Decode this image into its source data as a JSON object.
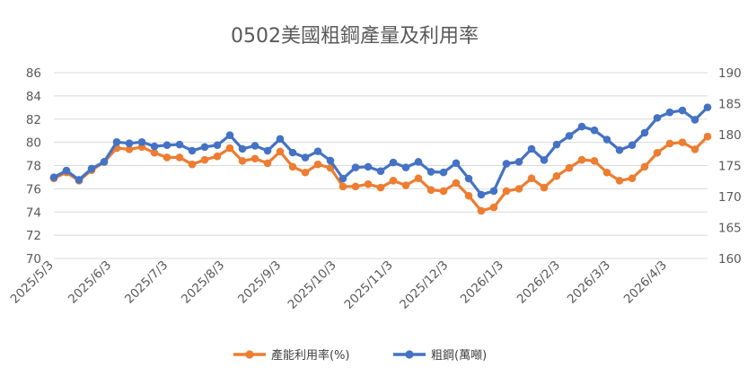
{
  "chart_data": {
    "type": "line",
    "title": "0502美國粗鋼產量及利用率",
    "legend_position": "bottom",
    "grid": true,
    "x_tick_labels": [
      "2025/5/3",
      "2025/6/3",
      "2025/7/3",
      "2025/8/3",
      "2025/9/3",
      "2025/10/3",
      "2025/11/3",
      "2025/12/3",
      "2026/1/3",
      "2026/2/3",
      "2026/3/3",
      "2026/4/3"
    ],
    "y_left": {
      "min": 70,
      "max": 86,
      "step": 2,
      "ticks": [
        "70",
        "72",
        "74",
        "76",
        "78",
        "80",
        "82",
        "84",
        "86"
      ]
    },
    "y_right": {
      "min": 160,
      "max": 190,
      "step": 5,
      "ticks": [
        "160",
        "165",
        "170",
        "175",
        "180",
        "185",
        "190"
      ]
    },
    "series": [
      {
        "name": "產能利用率(%)",
        "axis": "left",
        "color": "#ED7D31",
        "values": [
          76.9,
          77.4,
          76.7,
          77.6,
          78.3,
          79.5,
          79.4,
          79.6,
          79.1,
          78.7,
          78.7,
          78.1,
          78.5,
          78.8,
          79.5,
          78.4,
          78.6,
          78.2,
          79.2,
          77.9,
          77.4,
          78.1,
          77.8,
          76.2,
          76.2,
          76.4,
          76.1,
          76.7,
          76.3,
          76.9,
          75.9,
          75.8,
          76.5,
          75.4,
          74.1,
          74.4,
          75.8,
          76.0,
          76.9,
          76.1,
          77.1,
          77.8,
          78.5,
          78.4,
          77.4,
          76.7,
          76.9,
          77.9,
          79.1,
          79.9,
          80.0,
          79.4,
          80.5
        ]
      },
      {
        "name": "粗鋼(萬噸)",
        "axis": "right",
        "color": "#4472C4",
        "values": [
          173.1,
          174.2,
          172.7,
          174.5,
          175.6,
          178.8,
          178.6,
          178.8,
          178.1,
          178.3,
          178.4,
          177.4,
          178.0,
          178.3,
          179.9,
          177.7,
          178.2,
          177.4,
          179.3,
          177.1,
          176.3,
          177.3,
          175.8,
          172.9,
          174.7,
          174.8,
          174.1,
          175.5,
          174.7,
          175.6,
          174.0,
          173.9,
          175.4,
          172.9,
          170.3,
          170.9,
          175.3,
          175.6,
          177.7,
          175.9,
          178.4,
          179.8,
          181.3,
          180.7,
          179.2,
          177.5,
          178.3,
          180.3,
          182.7,
          183.6,
          183.9,
          182.4,
          184.4
        ]
      }
    ]
  }
}
